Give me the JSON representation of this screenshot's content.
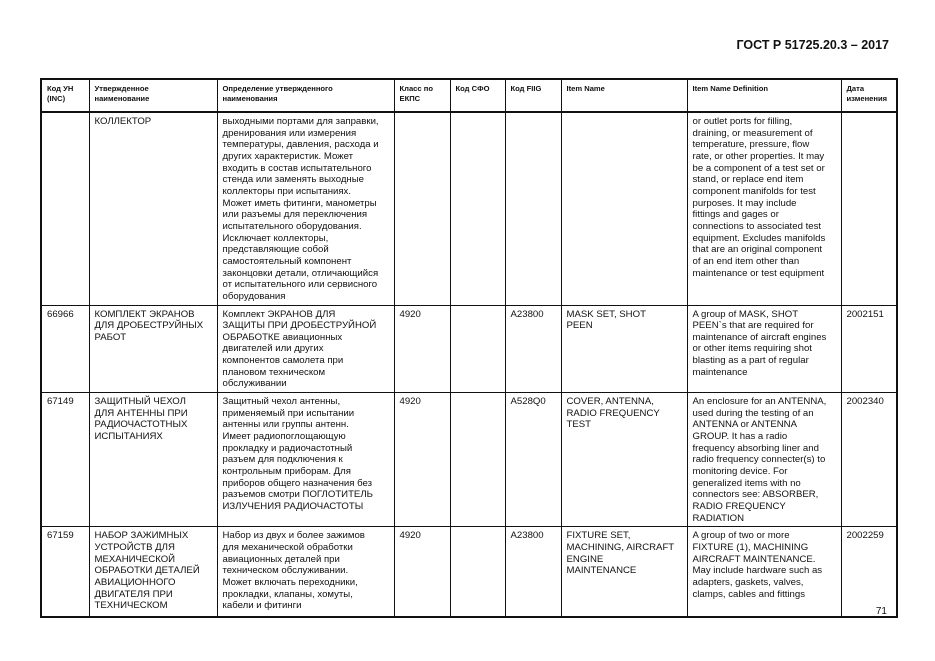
{
  "header": {
    "doc_title": "ГОСТ Р 51725.20.3 – 2017"
  },
  "footer": {
    "page_number": "71"
  },
  "table": {
    "columns": [
      "Код УН\n(INC)",
      "Утвержденное\nнаименование",
      "Определение утвержденного\nнаименования",
      "Класс по\nЕКПС",
      "Код СФО",
      "Код FIIG",
      "Item Name",
      "Item Name Definition",
      "Дата\nизменения"
    ],
    "rows": [
      {
        "inc": "",
        "name_ru": "КОЛЛЕКТОР",
        "definition_ru": "выходными портами для заправки,\nдренирования или измерения\nтемпературы, давления, расхода и\nдругих характеристик. Может\nвходить в состав испытательного\nстенда или заменять выходные\nколлекторы при испытаниях.\nМожет иметь фитинги, манометры\nили разъемы для переключения\nиспытательного оборудования.\nИсключает коллекторы,\nпредставляющие собой\nсамостоятельный компонент\nзаконцовки детали, отличающийся\nот испытательного или сервисного\nоборудования",
        "ekps": "",
        "sfo": "",
        "fiig": "",
        "item_name": "",
        "item_definition": "or outlet ports for filling,\ndraining, or measurement of\ntemperature, pressure, flow\nrate, or other properties.  It may\nbe a component of a test set or\nstand, or replace end item\ncomponent manifolds for test\npurposes.  It may include\nfittings and gages or\nconnections to associated test\nequipment.  Excludes manifolds\nthat are an original component\nof an end item other than\nmaintenance or test equipment",
        "date": ""
      },
      {
        "inc": "66966",
        "name_ru": "КОМПЛЕКТ ЭКРАНОВ\nДЛЯ ДРОБЕСТРУЙНЫХ\nРАБОТ",
        "definition_ru": "Комплект ЭКРАНОВ ДЛЯ\nЗАЩИТЫ ПРИ ДРОБЕСТРУЙНОЙ\nОБРАБОТКЕ авиационных\nдвигателей или других\nкомпонентов самолета при\nплановом техническом\nобслуживании",
        "ekps": "4920",
        "sfo": "",
        "fiig": "A23800",
        "item_name": "MASK SET, SHOT\nPEEN",
        "item_definition": "A group of MASK, SHOT\nPEEN`s that are required for\nmaintenance of aircraft engines\nor other items requiring shot\nblasting as a part of regular\nmaintenance",
        "date": "2002151"
      },
      {
        "inc": "67149",
        "name_ru": "ЗАЩИТНЫЙ ЧЕХОЛ\nДЛЯ АНТЕННЫ ПРИ\nРАДИОЧАСТОТНЫХ\nИСПЫТАНИЯХ",
        "definition_ru": "Защитный чехол антенны,\nприменяемый при испытании\nантенны или группы антенн.\nИмеет радиопоглощающую\nпрокладку и радиочастотный\nразъем для подключения к\nконтрольным приборам. Для\nприборов общего назначения без\nразъемов смотри ПОГЛОТИТЕЛЬ\nИЗЛУЧЕНИЯ РАДИОЧАСТОТЫ",
        "ekps": "4920",
        "sfo": "",
        "fiig": "A528Q0",
        "item_name": "COVER, ANTENNA,\nRADIO FREQUENCY\nTEST",
        "item_definition": "An enclosure for an ANTENNA,\nused during the testing of an\nANTENNA or ANTENNA\nGROUP.  It has a radio\nfrequency absorbing liner and\nradio frequency connecter(s) to\nmonitoring device.  For\ngeneralized items with no\nconnectors see:  ABSORBER,\nRADIO FREQUENCY\nRADIATION",
        "date": "2002340"
      },
      {
        "inc": "67159",
        "name_ru": "НАБОР ЗАЖИМНЫХ\nУСТРОЙСТВ ДЛЯ\nМЕХАНИЧЕСКОЙ\nОБРАБОТКИ ДЕТАЛЕЙ\nАВИАЦИОННОГО\nДВИГАТЕЛЯ ПРИ\nТЕХНИЧЕСКОМ",
        "definition_ru": "Набор из двух и более зажимов\nдля механической обработки\nавиационных деталей при\nтехническом обслуживании.\nМожет включать переходники,\nпрокладки, клапаны, хомуты,\nкабели и фитинги",
        "ekps": "4920",
        "sfo": "",
        "fiig": "A23800",
        "item_name": "FIXTURE SET,\nMACHINING, AIRCRAFT\nENGINE\nMAINTENANCE",
        "item_definition": "A group of two or more\nFIXTURE (1), MACHINING\nAIRCRAFT MAINTENANCE.\nMay include hardware such as\nadapters, gaskets, valves,\nclamps, cables and fittings",
        "date": "2002259"
      }
    ]
  }
}
